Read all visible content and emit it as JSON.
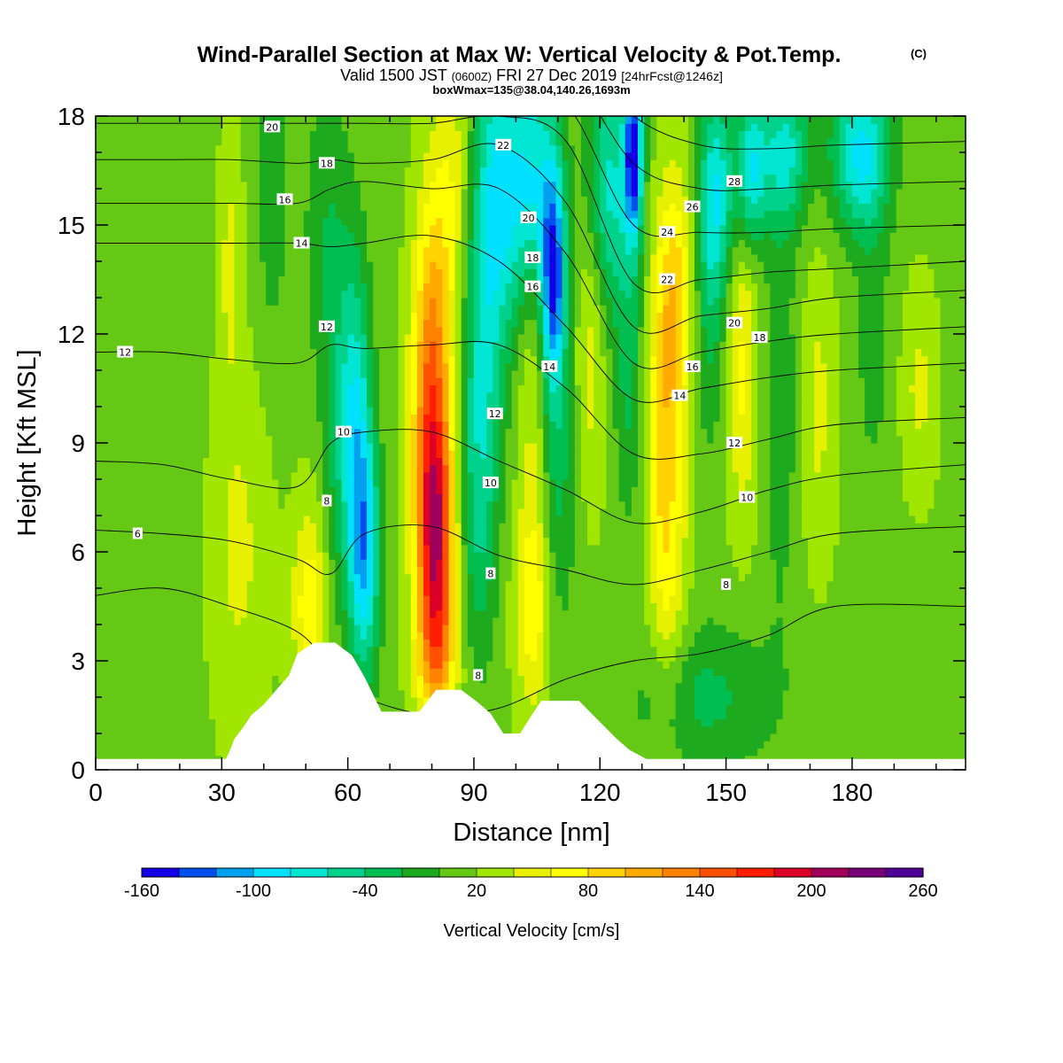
{
  "header": {
    "title": "Wind-Parallel Section at Max W: Vertical Velocity & Pot.Temp.",
    "title_mark": "(C)",
    "valid_prefix": "Valid 1500 JST",
    "valid_zulu": "(0600Z)",
    "valid_date": "FRI 27 Dec 2019",
    "forecast": "[24hrFcst@1246z]",
    "box_info": "boxWmax=135@38.04,140.26,1693m"
  },
  "chart_data": {
    "type": "heatmap",
    "xlabel": "Distance [nm]",
    "ylabel": "Height [Kft MSL]",
    "xlim": [
      0,
      207
    ],
    "ylim": [
      0,
      18
    ],
    "x_ticks": [
      0,
      30,
      60,
      90,
      120,
      150,
      180
    ],
    "y_ticks": [
      0,
      3,
      6,
      9,
      12,
      15,
      18
    ],
    "colorbar": {
      "label": "Vertical Velocity [cm/s]",
      "tick_labels": [
        "-160",
        "-100",
        "-40",
        "20",
        "80",
        "140",
        "200",
        "260"
      ],
      "colors": [
        "#1400e6",
        "#0050f0",
        "#00a0f0",
        "#00e0ff",
        "#00e6d2",
        "#00d28c",
        "#00be50",
        "#1eaa1e",
        "#64c814",
        "#a0e600",
        "#e6f000",
        "#ffff00",
        "#ffd200",
        "#ffaa00",
        "#ff8200",
        "#ff5000",
        "#ff1e00",
        "#dc0028",
        "#a0005a",
        "#780078",
        "#500096"
      ],
      "min": -160,
      "max": 260,
      "step": 20
    },
    "terrain": [
      [
        0,
        0.3
      ],
      [
        31,
        0.3
      ],
      [
        32,
        0.55
      ],
      [
        33,
        0.85
      ],
      [
        35,
        1.15
      ],
      [
        37,
        1.5
      ],
      [
        40,
        1.8
      ],
      [
        43,
        2.2
      ],
      [
        46,
        2.6
      ],
      [
        48,
        3.2
      ],
      [
        52,
        3.5
      ],
      [
        57,
        3.5
      ],
      [
        61,
        3.15
      ],
      [
        64,
        2.55
      ],
      [
        68,
        1.6
      ],
      [
        72,
        1.6
      ],
      [
        77,
        1.6
      ],
      [
        81,
        2.2
      ],
      [
        87,
        2.2
      ],
      [
        91,
        1.85
      ],
      [
        94,
        1.55
      ],
      [
        97,
        1.0
      ],
      [
        101,
        1.0
      ],
      [
        104,
        1.55
      ],
      [
        106,
        1.9
      ],
      [
        115,
        1.9
      ],
      [
        118,
        1.55
      ],
      [
        121,
        1.2
      ],
      [
        124,
        0.85
      ],
      [
        127,
        0.55
      ],
      [
        131,
        0.3
      ],
      [
        207,
        0.3
      ]
    ],
    "w_field": [
      {
        "x": 8,
        "z": 7,
        "w": -10,
        "sx": 10,
        "sz": 5
      },
      {
        "x": 34,
        "z": 6,
        "w": 30,
        "sx": 5,
        "sz": 3.5
      },
      {
        "x": 32,
        "z": 14,
        "w": 30,
        "sx": 2,
        "sz": 2.5
      },
      {
        "x": 42,
        "z": 16,
        "w": -30,
        "sx": 2.5,
        "sz": 3
      },
      {
        "x": 51,
        "z": 4.5,
        "w": 60,
        "sx": 3,
        "sz": 2
      },
      {
        "x": 58,
        "z": 9,
        "w": -40,
        "sx": 3,
        "sz": 3.5
      },
      {
        "x": 64,
        "z": 6,
        "w": -110,
        "sx": 2.5,
        "sz": 2.4
      },
      {
        "x": 62,
        "z": 10,
        "w": -70,
        "sx": 2.5,
        "sz": 3
      },
      {
        "x": 55,
        "z": 15,
        "w": -30,
        "sx": 4,
        "sz": 3
      },
      {
        "x": 81,
        "z": 6,
        "w": 130,
        "sx": 3,
        "sz": 2.2
      },
      {
        "x": 80,
        "z": 9,
        "w": 95,
        "sx": 3.5,
        "sz": 3
      },
      {
        "x": 80,
        "z": 12.5,
        "w": 60,
        "sx": 3,
        "sz": 3
      },
      {
        "x": 81,
        "z": 3,
        "w": 70,
        "sx": 3.5,
        "sz": 1.4
      },
      {
        "x": 85,
        "z": 16,
        "w": 40,
        "sx": 3,
        "sz": 2.5
      },
      {
        "x": 92,
        "z": 12,
        "w": -60,
        "sx": 3.5,
        "sz": 4
      },
      {
        "x": 91,
        "z": 7,
        "w": -40,
        "sx": 3,
        "sz": 3
      },
      {
        "x": 96,
        "z": 16,
        "w": -80,
        "sx": 3.5,
        "sz": 3
      },
      {
        "x": 104,
        "z": 4.5,
        "w": 60,
        "sx": 3,
        "sz": 2
      },
      {
        "x": 104,
        "z": 11,
        "w": 35,
        "sx": 2.5,
        "sz": 3.5
      },
      {
        "x": 109,
        "z": 13.5,
        "w": -140,
        "sx": 2,
        "sz": 2.2
      },
      {
        "x": 104,
        "z": 16,
        "w": -100,
        "sx": 4,
        "sz": 2.5
      },
      {
        "x": 110,
        "z": 8,
        "w": -40,
        "sx": 3,
        "sz": 3
      },
      {
        "x": 118,
        "z": 12,
        "w": 40,
        "sx": 2.5,
        "sz": 3
      },
      {
        "x": 122,
        "z": 16,
        "w": -80,
        "sx": 4,
        "sz": 2.5
      },
      {
        "x": 128,
        "z": 17,
        "w": -160,
        "sx": 1.5,
        "sz": 1.6
      },
      {
        "x": 127,
        "z": 11,
        "w": -40,
        "sx": 2.5,
        "sz": 3
      },
      {
        "x": 135,
        "z": 9,
        "w": 60,
        "sx": 3,
        "sz": 3.5
      },
      {
        "x": 138,
        "z": 13,
        "w": 70,
        "sx": 3,
        "sz": 2.5
      },
      {
        "x": 137,
        "z": 5,
        "w": 30,
        "sx": 3,
        "sz": 2.5
      },
      {
        "x": 146,
        "z": 13,
        "w": -40,
        "sx": 2.5,
        "sz": 3
      },
      {
        "x": 148,
        "z": 16,
        "w": -80,
        "sx": 3,
        "sz": 2
      },
      {
        "x": 154,
        "z": 11,
        "w": 50,
        "sx": 2.5,
        "sz": 3
      },
      {
        "x": 156,
        "z": 16.5,
        "w": -90,
        "sx": 2.5,
        "sz": 1.5
      },
      {
        "x": 164,
        "z": 17,
        "w": -80,
        "sx": 4,
        "sz": 1.5
      },
      {
        "x": 163,
        "z": 10,
        "w": -30,
        "sx": 3,
        "sz": 4
      },
      {
        "x": 172,
        "z": 10,
        "w": 30,
        "sx": 3,
        "sz": 3
      },
      {
        "x": 182,
        "z": 17,
        "w": -100,
        "sx": 5,
        "sz": 1.5
      },
      {
        "x": 185,
        "z": 12,
        "w": -25,
        "sx": 3,
        "sz": 3
      },
      {
        "x": 196,
        "z": 10.5,
        "w": 30,
        "sx": 3,
        "sz": 2
      },
      {
        "x": 145,
        "z": 2,
        "w": -40,
        "sx": 12,
        "sz": 1.5
      }
    ],
    "theta_contours": [
      {
        "label": "6",
        "z": [
          4.8,
          5.0,
          4.5,
          3.8,
          2.8,
          2.0,
          1.5,
          1.7,
          2.5,
          3.0,
          3.2,
          3.7,
          4.5,
          4.5
        ]
      },
      {
        "label": "8",
        "z": [
          6.6,
          6.5,
          6.3,
          5.8,
          5.4,
          6.5,
          6.7,
          5.9,
          5.5,
          5.1,
          5.5,
          6.0,
          6.5,
          6.7
        ]
      },
      {
        "label": "10",
        "z": [
          8.5,
          8.4,
          8.0,
          7.8,
          9.0,
          9.3,
          9.3,
          8.5,
          7.7,
          6.8,
          7.1,
          7.7,
          8.1,
          8.4
        ]
      },
      {
        "label": "12",
        "z": [
          11.5,
          11.5,
          11.3,
          11.2,
          11.7,
          11.6,
          11.7,
          11.7,
          10.5,
          8.7,
          8.7,
          9.1,
          9.5,
          9.7
        ]
      },
      {
        "label": "14",
        "z": [
          14.5,
          14.5,
          14.5,
          14.5,
          14.4,
          14.5,
          14.7,
          14.0,
          12.2,
          10.2,
          10.5,
          10.8,
          11.0,
          11.2
        ]
      },
      {
        "label": "16",
        "z": [
          15.6,
          15.6,
          15.6,
          15.6,
          16.0,
          16.2,
          16.0,
          16.0,
          14.2,
          11.2,
          11.5,
          11.8,
          12.0,
          12.2
        ]
      },
      {
        "label": "18",
        "z": [
          16.8,
          16.8,
          16.8,
          16.7,
          16.8,
          16.7,
          16.8,
          17.2,
          15.6,
          12.2,
          12.5,
          12.7,
          13.0,
          13.2
        ]
      },
      {
        "label": "20",
        "z": [
          17.8,
          17.8,
          17.8,
          17.8,
          17.8,
          17.8,
          17.8,
          18.0,
          17.3,
          13.4,
          13.5,
          13.7,
          13.8,
          14.0
        ]
      },
      {
        "label": "22",
        "z": [
          18.5,
          18.5,
          18.5,
          18.5,
          18.5,
          18.5,
          18.5,
          18.5,
          18.3,
          15.0,
          14.8,
          14.8,
          14.9,
          15.0
        ]
      },
      {
        "label": "24",
        "z": [
          19.5,
          19.5,
          19.5,
          19.5,
          19.5,
          19.5,
          19.5,
          19.5,
          19.3,
          16.7,
          16.0,
          16.0,
          16.1,
          16.2
        ]
      },
      {
        "label": "26",
        "z": [
          20,
          20,
          20,
          20,
          20,
          20,
          20,
          20,
          20,
          18.0,
          17.2,
          17.1,
          17.2,
          17.3
        ]
      },
      {
        "label": "28",
        "z": [
          21,
          21,
          21,
          21,
          21,
          21,
          21,
          21,
          21,
          19.0,
          18.1,
          18.0,
          18.0,
          18.0
        ]
      }
    ],
    "theta_contour_x": [
      0,
      16,
      32,
      48,
      56,
      64,
      80,
      96,
      112,
      128,
      144,
      160,
      176,
      207
    ],
    "contour_labels": [
      {
        "text": "20",
        "x": 42,
        "z": 17.7
      },
      {
        "text": "18",
        "x": 55,
        "z": 16.7
      },
      {
        "text": "16",
        "x": 45,
        "z": 15.7
      },
      {
        "text": "14",
        "x": 49,
        "z": 14.5
      },
      {
        "text": "12",
        "x": 7,
        "z": 11.5
      },
      {
        "text": "12",
        "x": 55,
        "z": 12.2
      },
      {
        "text": "10",
        "x": 59,
        "z": 9.3
      },
      {
        "text": "8",
        "x": 55,
        "z": 7.4
      },
      {
        "text": "6",
        "x": 10,
        "z": 6.5
      },
      {
        "text": "22",
        "x": 97,
        "z": 17.2
      },
      {
        "text": "20",
        "x": 103,
        "z": 15.2
      },
      {
        "text": "18",
        "x": 104,
        "z": 14.1
      },
      {
        "text": "16",
        "x": 104,
        "z": 13.3
      },
      {
        "text": "14",
        "x": 108,
        "z": 11.1
      },
      {
        "text": "12",
        "x": 95,
        "z": 9.8
      },
      {
        "text": "10",
        "x": 94,
        "z": 7.9
      },
      {
        "text": "8",
        "x": 94,
        "z": 5.4
      },
      {
        "text": "8",
        "x": 91,
        "z": 2.6
      },
      {
        "text": "28",
        "x": 152,
        "z": 16.2
      },
      {
        "text": "26",
        "x": 142,
        "z": 15.5
      },
      {
        "text": "24",
        "x": 136,
        "z": 14.8
      },
      {
        "text": "22",
        "x": 136,
        "z": 13.5
      },
      {
        "text": "20",
        "x": 152,
        "z": 12.3
      },
      {
        "text": "18",
        "x": 158,
        "z": 11.9
      },
      {
        "text": "16",
        "x": 142,
        "z": 11.1
      },
      {
        "text": "14",
        "x": 139,
        "z": 10.3
      },
      {
        "text": "12",
        "x": 152,
        "z": 9
      },
      {
        "text": "10",
        "x": 155,
        "z": 7.5
      },
      {
        "text": "8",
        "x": 150,
        "z": 5.1
      }
    ]
  }
}
